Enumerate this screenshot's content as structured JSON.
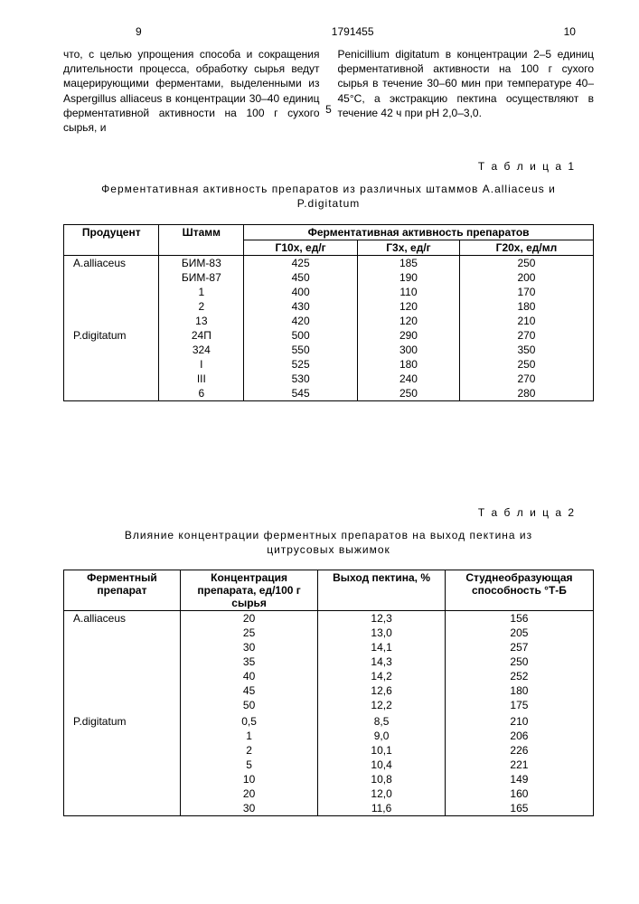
{
  "header": {
    "page_left": "9",
    "doc_number": "1791455",
    "page_right": "10"
  },
  "body_text": {
    "left_col": "что, с целью упрощения способа и сокращения длительности процесса, обработку сырья ведут мацерирующими ферментами, выделенными из Aspergillus alliaceus в концентрации 30–40 единиц ферментативной активности на 100 г сухого сырья, и",
    "right_col": "Penicillium digitatum в концентрации 2–5 единиц ферментативной активности на 100 г сухого сырья в течение 30–60 мин при температуре 40–45°С, а экстракцию пектина осуществляют в течение 42 ч при pH 2,0–3,0.",
    "line_num": "5"
  },
  "table1": {
    "label": "Т а б л и ц а  1",
    "caption": "Ферментативная активность препаратов из различных штаммов A.alliaceus и P.digitatum",
    "headers": {
      "h1": "Продуцент",
      "h2": "Штамм",
      "h3": "Ферментативная активность препаратов",
      "s1": "Г10х, ед/г",
      "s2": "Г3х, ед/г",
      "s3": "Г20х, ед/мл"
    },
    "rows": [
      {
        "p": "A.alliaceus",
        "s": "БИМ-83",
        "a": "425",
        "b": "185",
        "c": "250"
      },
      {
        "p": "",
        "s": "БИМ-87",
        "a": "450",
        "b": "190",
        "c": "200"
      },
      {
        "p": "",
        "s": "1",
        "a": "400",
        "b": "110",
        "c": "170"
      },
      {
        "p": "",
        "s": "2",
        "a": "430",
        "b": "120",
        "c": "180"
      },
      {
        "p": "",
        "s": "13",
        "a": "420",
        "b": "120",
        "c": "210"
      },
      {
        "p": "P.digitatum",
        "s": "24П",
        "a": "500",
        "b": "290",
        "c": "270"
      },
      {
        "p": "",
        "s": "324",
        "a": "550",
        "b": "300",
        "c": "350"
      },
      {
        "p": "",
        "s": "I",
        "a": "525",
        "b": "180",
        "c": "250"
      },
      {
        "p": "",
        "s": "III",
        "a": "530",
        "b": "240",
        "c": "270"
      },
      {
        "p": "",
        "s": "6",
        "a": "545",
        "b": "250",
        "c": "280"
      }
    ]
  },
  "table2": {
    "label": "Т а б л и ц а  2",
    "caption": "Влияние концентрации ферментных препаратов на выход пектина из цитрусовых выжимок",
    "headers": {
      "h1": "Ферментный препарат",
      "h2": "Концентрация препарата, ед/100 г сырья",
      "h3": "Выход пектина, %",
      "h4": "Студнеобразующая способность °Т-Б"
    },
    "rows": [
      {
        "p": "A.alliaceus",
        "c": "20",
        "y": "12,3",
        "g": "156"
      },
      {
        "p": "",
        "c": "25",
        "y": "13,0",
        "g": "205"
      },
      {
        "p": "",
        "c": "30",
        "y": "14,1",
        "g": "257"
      },
      {
        "p": "",
        "c": "35",
        "y": "14,3",
        "g": "250"
      },
      {
        "p": "",
        "c": "40",
        "y": "14,2",
        "g": "252"
      },
      {
        "p": "",
        "c": "45",
        "y": "12,6",
        "g": "180"
      },
      {
        "p": "",
        "c": "50",
        "y": "12,2",
        "g": "175"
      },
      {
        "p": "",
        "c": "",
        "y": "",
        "g": ""
      },
      {
        "p": "P.digitatum",
        "c": "0,5",
        "y": "8,5",
        "g": "210"
      },
      {
        "p": "",
        "c": "1",
        "y": "9,0",
        "g": "206"
      },
      {
        "p": "",
        "c": "2",
        "y": "10,1",
        "g": "226"
      },
      {
        "p": "",
        "c": "5",
        "y": "10,4",
        "g": "221"
      },
      {
        "p": "",
        "c": "10",
        "y": "10,8",
        "g": "149"
      },
      {
        "p": "",
        "c": "20",
        "y": "12,0",
        "g": "160"
      },
      {
        "p": "",
        "c": "30",
        "y": "11,6",
        "g": "165"
      }
    ]
  }
}
